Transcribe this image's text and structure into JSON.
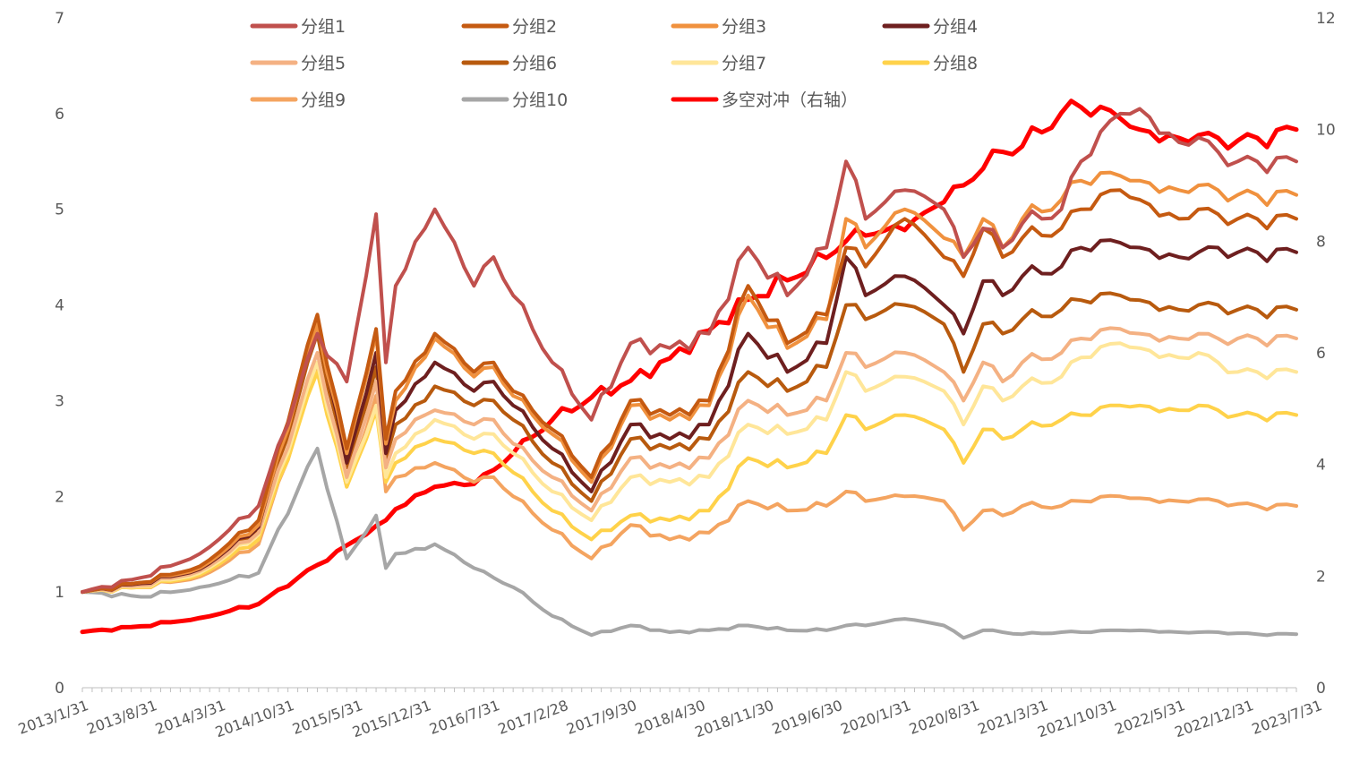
{
  "chart_data": {
    "type": "line",
    "x_tick_labels": [
      "2013/1/31",
      "2013/8/31",
      "2014/3/31",
      "2014/10/31",
      "2015/5/31",
      "2015/12/31",
      "2016/7/31",
      "2017/2/28",
      "2017/9/30",
      "2018/4/30",
      "2018/11/30",
      "2019/6/30",
      "2020/1/31",
      "2020/8/31",
      "2021/3/31",
      "2021/10/31",
      "2022/5/31",
      "2022/12/31",
      "2023/7/31"
    ],
    "y_left": {
      "min": 0,
      "max": 7,
      "ticks": [
        "0",
        "1",
        "2",
        "3",
        "4",
        "5",
        "6",
        "7"
      ]
    },
    "y_right": {
      "min": 0,
      "max": 12,
      "ticks": [
        "0",
        "2",
        "4",
        "6",
        "8",
        "10",
        "12"
      ]
    },
    "series": [
      {
        "name": "分组1",
        "color": "#c0504d",
        "axis": "left",
        "width": 4
      },
      {
        "name": "分组2",
        "color": "#c55a11",
        "axis": "left",
        "width": 4
      },
      {
        "name": "分组3",
        "color": "#f0913e",
        "axis": "left",
        "width": 4
      },
      {
        "name": "分组4",
        "color": "#6e1f1f",
        "axis": "left",
        "width": 4
      },
      {
        "name": "分组5",
        "color": "#f4b183",
        "axis": "left",
        "width": 4
      },
      {
        "name": "分组6",
        "color": "#b85a0e",
        "axis": "left",
        "width": 4
      },
      {
        "name": "分组7",
        "color": "#ffe699",
        "axis": "left",
        "width": 4
      },
      {
        "name": "分组8",
        "color": "#ffd24a",
        "axis": "left",
        "width": 4
      },
      {
        "name": "分组9",
        "color": "#f4a460",
        "axis": "left",
        "width": 4
      },
      {
        "name": "分组10",
        "color": "#a6a6a6",
        "axis": "left",
        "width": 4
      },
      {
        "name": "多空对冲（右轴）",
        "color": "#ff0000",
        "axis": "right",
        "width": 5
      }
    ],
    "anchors": {
      "t": [
        0,
        6,
        12,
        18,
        24,
        27,
        30,
        31,
        32,
        35,
        36,
        40,
        42,
        44,
        48,
        52,
        56,
        60,
        64,
        68,
        72,
        76,
        78,
        80,
        84,
        88,
        90,
        92,
        94,
        96,
        100,
        102,
        106,
        108,
        112,
        114,
        116,
        118,
        120,
        124
      ],
      "values": {
        "分组1": [
          1.0,
          1.15,
          1.4,
          1.9,
          3.7,
          3.2,
          4.95,
          3.4,
          4.2,
          4.8,
          5.0,
          4.2,
          4.5,
          4.1,
          3.4,
          2.8,
          3.6,
          3.55,
          3.7,
          4.6,
          4.1,
          4.6,
          5.5,
          4.9,
          5.2,
          5.0,
          4.5,
          4.8,
          4.6,
          4.85,
          5.0,
          5.5,
          6.0,
          6.05,
          5.7,
          5.75,
          5.6,
          5.5,
          5.5,
          5.5
        ],
        "分组2": [
          1.0,
          1.1,
          1.27,
          1.75,
          3.9,
          2.5,
          3.75,
          2.6,
          3.1,
          3.5,
          3.7,
          3.3,
          3.4,
          3.1,
          2.7,
          2.2,
          3.0,
          2.85,
          3.0,
          4.2,
          3.6,
          3.9,
          4.6,
          4.4,
          4.9,
          4.5,
          4.3,
          4.8,
          4.5,
          4.7,
          4.8,
          5.0,
          5.2,
          5.1,
          4.9,
          5.0,
          4.95,
          4.9,
          4.9,
          4.9
        ],
        "分组3": [
          1.0,
          1.1,
          1.25,
          1.7,
          3.8,
          2.45,
          3.7,
          2.55,
          3.0,
          3.45,
          3.65,
          3.25,
          3.35,
          3.05,
          2.65,
          2.15,
          2.95,
          2.8,
          2.95,
          4.1,
          3.55,
          3.85,
          4.9,
          4.6,
          5.0,
          4.7,
          4.5,
          4.9,
          4.6,
          4.9,
          5.1,
          5.3,
          5.35,
          5.3,
          5.2,
          5.25,
          5.2,
          5.15,
          5.15,
          5.15
        ],
        "分组4": [
          1.0,
          1.09,
          1.24,
          1.68,
          3.85,
          2.35,
          3.5,
          2.45,
          2.9,
          3.25,
          3.4,
          3.1,
          3.2,
          2.95,
          2.5,
          2.05,
          2.75,
          2.6,
          2.75,
          3.7,
          3.3,
          3.6,
          4.5,
          4.1,
          4.3,
          4.0,
          3.7,
          4.25,
          4.1,
          4.3,
          4.4,
          4.6,
          4.65,
          4.6,
          4.5,
          4.55,
          4.6,
          4.55,
          4.55,
          4.55
        ],
        "分组5": [
          1.0,
          1.07,
          1.22,
          1.62,
          3.5,
          2.2,
          3.2,
          2.3,
          2.6,
          2.85,
          2.9,
          2.75,
          2.8,
          2.55,
          2.2,
          1.85,
          2.4,
          2.3,
          2.4,
          3.0,
          2.85,
          3.0,
          3.5,
          3.35,
          3.5,
          3.3,
          3.0,
          3.4,
          3.2,
          3.4,
          3.5,
          3.65,
          3.75,
          3.7,
          3.65,
          3.7,
          3.65,
          3.65,
          3.65,
          3.65
        ],
        "分组6": [
          1.0,
          1.08,
          1.23,
          1.65,
          3.7,
          2.3,
          3.35,
          2.4,
          2.75,
          3.0,
          3.15,
          2.95,
          3.0,
          2.8,
          2.35,
          1.95,
          2.6,
          2.5,
          2.6,
          3.3,
          3.1,
          3.35,
          4.0,
          3.85,
          4.0,
          3.8,
          3.3,
          3.8,
          3.7,
          3.85,
          3.95,
          4.05,
          4.1,
          4.05,
          3.95,
          4.0,
          4.0,
          3.95,
          3.95,
          3.95
        ],
        "分组7": [
          1.0,
          1.06,
          1.2,
          1.6,
          3.4,
          2.15,
          2.95,
          2.2,
          2.45,
          2.7,
          2.8,
          2.6,
          2.65,
          2.45,
          2.05,
          1.75,
          2.2,
          2.15,
          2.2,
          2.75,
          2.65,
          2.8,
          3.3,
          3.1,
          3.25,
          3.1,
          2.75,
          3.15,
          3.0,
          3.15,
          3.25,
          3.45,
          3.6,
          3.55,
          3.45,
          3.5,
          3.4,
          3.3,
          3.3,
          3.3
        ],
        "分组8": [
          1.0,
          1.05,
          1.18,
          1.55,
          3.3,
          2.1,
          2.9,
          2.15,
          2.35,
          2.55,
          2.6,
          2.45,
          2.45,
          2.25,
          1.85,
          1.55,
          1.8,
          1.75,
          1.85,
          2.4,
          2.3,
          2.45,
          2.85,
          2.7,
          2.85,
          2.7,
          2.35,
          2.7,
          2.6,
          2.7,
          2.8,
          2.85,
          2.95,
          2.95,
          2.9,
          2.95,
          2.9,
          2.85,
          2.85,
          2.85
        ],
        "分组9": [
          1.0,
          1.05,
          1.16,
          1.5,
          3.35,
          2.1,
          3.05,
          2.05,
          2.2,
          2.3,
          2.35,
          2.15,
          2.2,
          2.0,
          1.65,
          1.35,
          1.7,
          1.55,
          1.62,
          1.95,
          1.85,
          1.9,
          2.05,
          1.95,
          2.0,
          1.95,
          1.65,
          1.85,
          1.8,
          1.9,
          1.9,
          1.95,
          2.0,
          1.98,
          1.95,
          1.97,
          1.95,
          1.92,
          1.9,
          1.9
        ],
        "分组10": [
          1.0,
          0.95,
          1.05,
          1.2,
          2.5,
          1.35,
          1.8,
          1.25,
          1.4,
          1.45,
          1.5,
          1.25,
          1.15,
          1.05,
          0.75,
          0.55,
          0.65,
          0.58,
          0.6,
          0.65,
          0.6,
          0.6,
          0.65,
          0.65,
          0.72,
          0.65,
          0.52,
          0.6,
          0.58,
          0.56,
          0.58,
          0.58,
          0.6,
          0.6,
          0.58,
          0.58,
          0.58,
          0.57,
          0.56,
          0.56
        ],
        "多空对冲（右轴）": [
          1.0,
          1.1,
          1.25,
          1.5,
          2.2,
          2.55,
          2.9,
          3.0,
          3.2,
          3.5,
          3.6,
          3.65,
          3.9,
          4.2,
          4.8,
          5.2,
          5.5,
          5.9,
          6.4,
          6.95,
          7.3,
          7.7,
          8.0,
          8.1,
          8.2,
          8.7,
          9.0,
          9.3,
          9.6,
          9.7,
          10.3,
          10.4,
          10.2,
          10.0,
          9.85,
          9.9,
          9.85,
          9.8,
          9.85,
          10.0
        ]
      }
    }
  }
}
